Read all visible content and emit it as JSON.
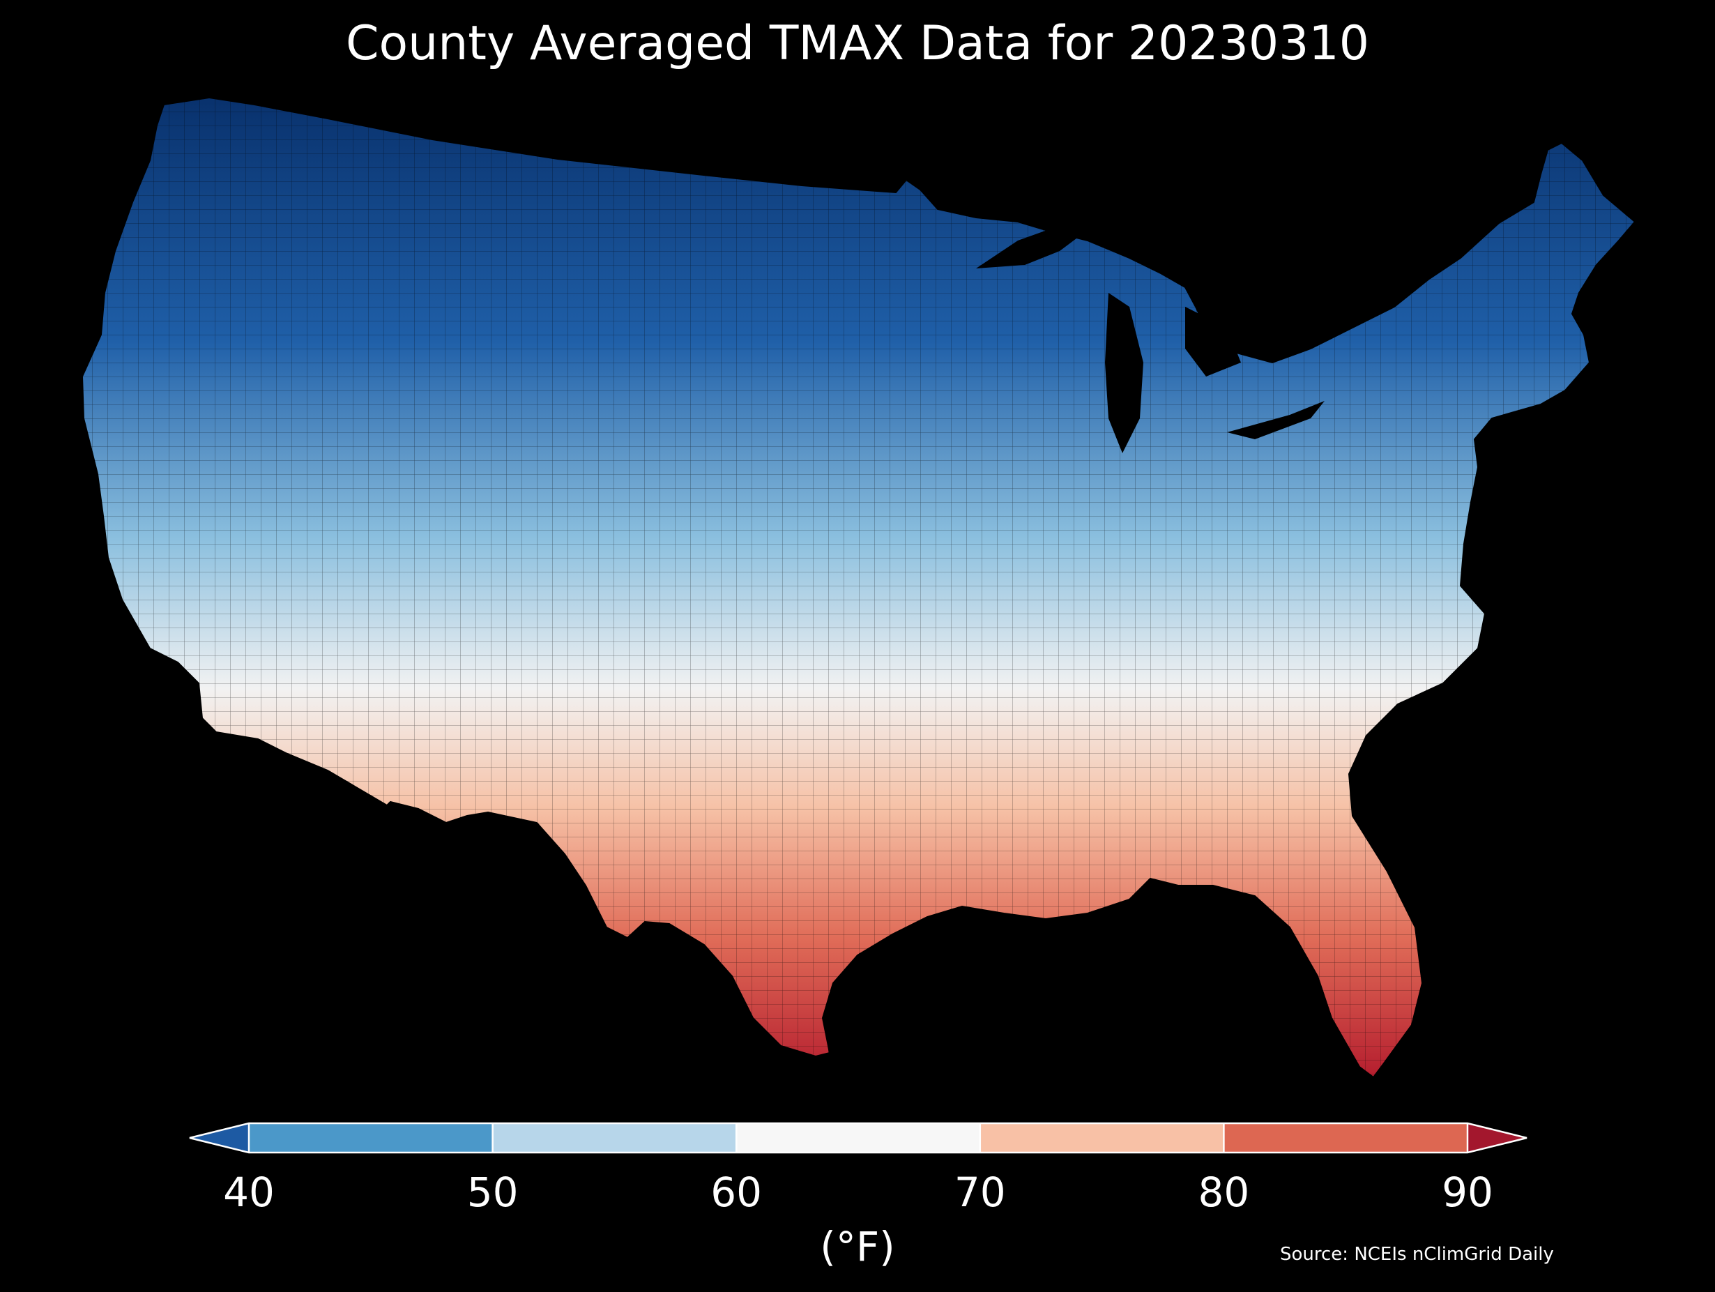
{
  "title": "County Averaged TMAX Data for 20230310",
  "source": "Source: NCEIs nClimGrid Daily",
  "map": {
    "region": "contiguous-united-states",
    "units": "county",
    "variable": "TMAX",
    "background_color": "#000000",
    "county_border_color": "#000000",
    "gradient_stops": [
      {
        "offset": 0.0,
        "color": "#08306b"
      },
      {
        "offset": 0.25,
        "color": "#1f5fa8"
      },
      {
        "offset": 0.45,
        "color": "#8cc0df"
      },
      {
        "offset": 0.6,
        "color": "#f2f2f2"
      },
      {
        "offset": 0.72,
        "color": "#f6c1a6"
      },
      {
        "offset": 0.85,
        "color": "#e06c58"
      },
      {
        "offset": 1.0,
        "color": "#b2182b"
      }
    ]
  },
  "colorbar": {
    "units_label": "(°F)",
    "ticks": [
      "40",
      "50",
      "60",
      "70",
      "80",
      "90"
    ],
    "segments": [
      {
        "from": 40,
        "to": 50,
        "color": "#4b98c9"
      },
      {
        "from": 50,
        "to": 60,
        "color": "#b7d6ea"
      },
      {
        "from": 60,
        "to": 70,
        "color": "#f7f7f7"
      },
      {
        "from": 70,
        "to": 80,
        "color": "#f8c1a6"
      },
      {
        "from": 80,
        "to": 90,
        "color": "#dd6752"
      }
    ],
    "under_color": "#1d5aa3",
    "over_color": "#a3172d",
    "outline_color": "#ffffff"
  }
}
